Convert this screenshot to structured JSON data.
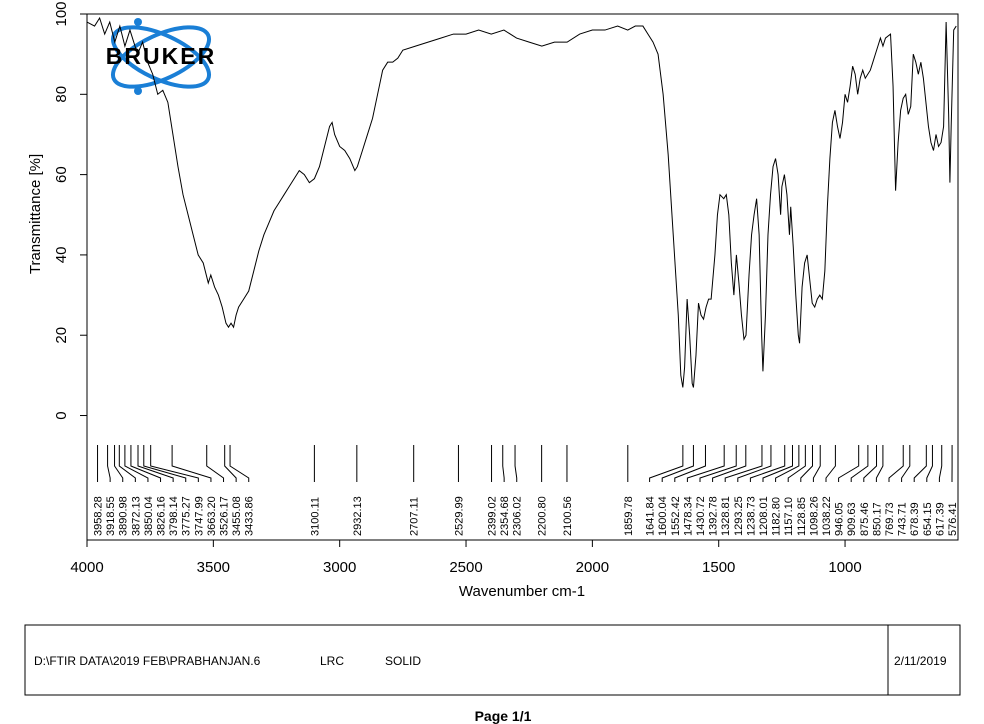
{
  "chart_data": {
    "type": "line",
    "xlabel": "Wavenumber cm-1",
    "ylabel": "Transmittance [%]",
    "color": "#000000",
    "xlim": [
      4000,
      553
    ],
    "ylim": [
      -31,
      100
    ],
    "xticks": [
      4000,
      3500,
      3000,
      2500,
      2000,
      1500,
      1000
    ],
    "yticks": [
      0,
      20,
      40,
      60,
      80,
      100
    ],
    "x": [
      4000,
      3970,
      3950,
      3930,
      3910,
      3890,
      3870,
      3850,
      3830,
      3800,
      3780,
      3760,
      3740,
      3720,
      3700,
      3680,
      3660,
      3640,
      3620,
      3600,
      3580,
      3560,
      3540,
      3520,
      3510,
      3495,
      3480,
      3465,
      3450,
      3440,
      3430,
      3420,
      3410,
      3400,
      3380,
      3360,
      3340,
      3320,
      3300,
      3280,
      3260,
      3240,
      3220,
      3200,
      3180,
      3160,
      3140,
      3120,
      3100,
      3080,
      3060,
      3040,
      3030,
      3020,
      3000,
      2980,
      2960,
      2940,
      2930,
      2910,
      2890,
      2870,
      2850,
      2830,
      2810,
      2790,
      2770,
      2750,
      2700,
      2650,
      2600,
      2550,
      2500,
      2450,
      2400,
      2350,
      2300,
      2250,
      2200,
      2150,
      2100,
      2050,
      2000,
      1950,
      1900,
      1860,
      1830,
      1800,
      1780,
      1760,
      1740,
      1720,
      1700,
      1680,
      1660,
      1650,
      1642,
      1635,
      1625,
      1615,
      1605,
      1600,
      1590,
      1580,
      1570,
      1560,
      1550,
      1540,
      1530,
      1515,
      1505,
      1495,
      1480,
      1470,
      1460,
      1450,
      1440,
      1430,
      1420,
      1410,
      1400,
      1392,
      1380,
      1370,
      1360,
      1350,
      1340,
      1330,
      1325,
      1315,
      1305,
      1295,
      1285,
      1275,
      1265,
      1255,
      1250,
      1240,
      1230,
      1220,
      1215,
      1205,
      1195,
      1185,
      1180,
      1170,
      1160,
      1150,
      1140,
      1130,
      1120,
      1110,
      1100,
      1090,
      1080,
      1070,
      1060,
      1050,
      1040,
      1030,
      1020,
      1010,
      1000,
      990,
      980,
      970,
      960,
      950,
      940,
      930,
      920,
      900,
      890,
      880,
      870,
      860,
      850,
      840,
      820,
      810,
      800,
      790,
      780,
      770,
      760,
      750,
      740,
      730,
      720,
      710,
      700,
      690,
      680,
      670,
      660,
      650,
      640,
      630,
      620,
      610,
      600,
      590,
      585,
      580,
      570,
      560
    ],
    "values": [
      98,
      97,
      99,
      95,
      98,
      93,
      97,
      92,
      96,
      90,
      93,
      88,
      85,
      80,
      81,
      78,
      70,
      62,
      55,
      50,
      45,
      40,
      38,
      33,
      35,
      32,
      30,
      27,
      23,
      22,
      23,
      22,
      25,
      27,
      29,
      31,
      36,
      41,
      45,
      48,
      51,
      53,
      55,
      57,
      59,
      61,
      60,
      58,
      59,
      62,
      67,
      72,
      73,
      70,
      67,
      66,
      64,
      61,
      62,
      66,
      70,
      74,
      80,
      86,
      88,
      88,
      89,
      91,
      92,
      93,
      94,
      95,
      95,
      96,
      95,
      96,
      94,
      93,
      92,
      93,
      93,
      95,
      96,
      96,
      97,
      96,
      97,
      97,
      95,
      93,
      90,
      80,
      65,
      45,
      25,
      10,
      7,
      12,
      29,
      20,
      8,
      7,
      15,
      28,
      25,
      24,
      27,
      29,
      29,
      40,
      50,
      55,
      54,
      55,
      50,
      38,
      30,
      40,
      33,
      25,
      19,
      20,
      35,
      45,
      50,
      54,
      45,
      20,
      11,
      25,
      45,
      55,
      62,
      64,
      60,
      50,
      57,
      60,
      55,
      45,
      52,
      42,
      30,
      20,
      18,
      32,
      38,
      40,
      34,
      28,
      27,
      29,
      30,
      29,
      36,
      52,
      64,
      73,
      76,
      72,
      69,
      73,
      80,
      78,
      82,
      87,
      85,
      80,
      84,
      86,
      84,
      86,
      88,
      90,
      92,
      94,
      92,
      94,
      95,
      82,
      56,
      68,
      76,
      79,
      80,
      75,
      77,
      90,
      88,
      85,
      88,
      84,
      78,
      72,
      68,
      66,
      70,
      67,
      68,
      72,
      98,
      75,
      58,
      72,
      96,
      97
    ],
    "peaks": [
      {
        "value": 3958.28,
        "label": "3958.28"
      },
      {
        "value": 3918.55,
        "label": "3918.55"
      },
      {
        "value": 3890.98,
        "label": "3890.98"
      },
      {
        "value": 3872.13,
        "label": "3872.13"
      },
      {
        "value": 3850.04,
        "label": "3850.04"
      },
      {
        "value": 3826.16,
        "label": "3826.16"
      },
      {
        "value": 3798.14,
        "label": "3798.14"
      },
      {
        "value": 3775.27,
        "label": "3775.27"
      },
      {
        "value": 3747.99,
        "label": "3747.99"
      },
      {
        "value": 3663.2,
        "label": "3663.20"
      },
      {
        "value": 3526.17,
        "label": "3526.17"
      },
      {
        "value": 3455.08,
        "label": "3455.08"
      },
      {
        "value": 3433.86,
        "label": "3433.86"
      },
      {
        "value": 3100.11,
        "label": "3100.11"
      },
      {
        "value": 2932.13,
        "label": "2932.13"
      },
      {
        "value": 2707.11,
        "label": "2707.11"
      },
      {
        "value": 2529.99,
        "label": "2529.99"
      },
      {
        "value": 2399.02,
        "label": "2399.02"
      },
      {
        "value": 2354.68,
        "label": "2354.68"
      },
      {
        "value": 2306.02,
        "label": "2306.02"
      },
      {
        "value": 2200.8,
        "label": "2200.80"
      },
      {
        "value": 2100.56,
        "label": "2100.56"
      },
      {
        "value": 1859.78,
        "label": "1859.78"
      },
      {
        "value": 1641.84,
        "label": "1641.84"
      },
      {
        "value": 1600.04,
        "label": "1600.04"
      },
      {
        "value": 1552.42,
        "label": "1552.42"
      },
      {
        "value": 1478.34,
        "label": "1478.34"
      },
      {
        "value": 1430.72,
        "label": "1430.72"
      },
      {
        "value": 1392.78,
        "label": "1392.78"
      },
      {
        "value": 1328.81,
        "label": "1328.81"
      },
      {
        "value": 1293.25,
        "label": "1293.25"
      },
      {
        "value": 1238.73,
        "label": "1238.73"
      },
      {
        "value": 1208.01,
        "label": "1208.01"
      },
      {
        "value": 1182.8,
        "label": "1182.80"
      },
      {
        "value": 1157.1,
        "label": "1157.10"
      },
      {
        "value": 1128.85,
        "label": "1128.85"
      },
      {
        "value": 1098.26,
        "label": "1098.26"
      },
      {
        "value": 1038.22,
        "label": "1038.22"
      },
      {
        "value": 946.05,
        "label": "946.05"
      },
      {
        "value": 909.63,
        "label": "909.63"
      },
      {
        "value": 875.46,
        "label": "875.46"
      },
      {
        "value": 850.17,
        "label": "850.17"
      },
      {
        "value": 769.73,
        "label": "769.73"
      },
      {
        "value": 743.71,
        "label": "743.71"
      },
      {
        "value": 678.39,
        "label": "678.39"
      },
      {
        "value": 654.15,
        "label": "654.15"
      },
      {
        "value": 617.39,
        "label": "617.39"
      },
      {
        "value": 576.41,
        "label": "576.41"
      }
    ]
  },
  "logo": "BRUKER",
  "footer": {
    "file": "D:\\FTIR DATA\\2019 FEB\\PRABHANJAN.6",
    "sample": "LRC",
    "state": "SOLID",
    "date": "2/11/2019"
  },
  "page": "Page 1/1"
}
